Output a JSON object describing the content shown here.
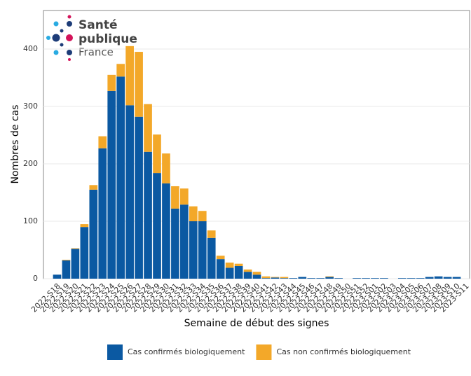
{
  "logo": {
    "line1": "Santé",
    "line2": "publique",
    "line3": "France"
  },
  "chart_data": {
    "type": "stacked-bar",
    "x_label": "Semaine de début des signes",
    "y_label": "Nombres de cas",
    "categories": [
      "2022-S18",
      "2022-S19",
      "2022-S20",
      "2022-S21",
      "2022-S22",
      "2022-S23",
      "2022-S24",
      "2022-S25",
      "2022-S26",
      "2022-S27",
      "2022-S28",
      "2022-S29",
      "2022-S30",
      "2022-S31",
      "2022-S32",
      "2022-S33",
      "2022-S34",
      "2022-S35",
      "2022-S36",
      "2022-S37",
      "2022-S38",
      "2022-S39",
      "2022-S40",
      "2022-S41",
      "2022-S42",
      "2022-S43",
      "2022-S44",
      "2022-S45",
      "2022-S46",
      "2022-S47",
      "2022-S48",
      "2022-S49",
      "2022-S50",
      "2022-S51",
      "2022-S52",
      "2023-S01",
      "2023-S02",
      "2023-S03",
      "2023-S04",
      "2023-S05",
      "2023-S06",
      "2023-S07",
      "2023-S08",
      "2023-S09",
      "2023-S10",
      "2023-S11"
    ],
    "series": [
      {
        "name": "Cas confirmés biologiquement",
        "color": "#0b59a2",
        "values": [
          7,
          32,
          52,
          90,
          155,
          227,
          327,
          352,
          302,
          282,
          221,
          184,
          166,
          122,
          129,
          100,
          100,
          71,
          34,
          19,
          22,
          12,
          7,
          1,
          2,
          1,
          1,
          3,
          1,
          1,
          3,
          1,
          0,
          1,
          1,
          1,
          1,
          0,
          1,
          1,
          1,
          3,
          4,
          3,
          3,
          0
        ]
      },
      {
        "name": "Cas non confirmés biologiquement",
        "color": "#f3a829",
        "values": [
          0,
          1,
          1,
          5,
          8,
          21,
          28,
          22,
          103,
          113,
          83,
          67,
          52,
          39,
          28,
          26,
          18,
          13,
          6,
          9,
          4,
          4,
          5,
          3,
          1,
          2,
          0,
          0,
          0,
          0,
          1,
          0,
          0,
          0,
          0,
          0,
          0,
          0,
          0,
          0,
          0,
          0,
          0,
          0,
          0,
          0
        ]
      }
    ],
    "ylim": [
      0,
      467
    ],
    "yticks": [
      0,
      100,
      200,
      300,
      400
    ],
    "grid": true,
    "legend": "bottom"
  }
}
